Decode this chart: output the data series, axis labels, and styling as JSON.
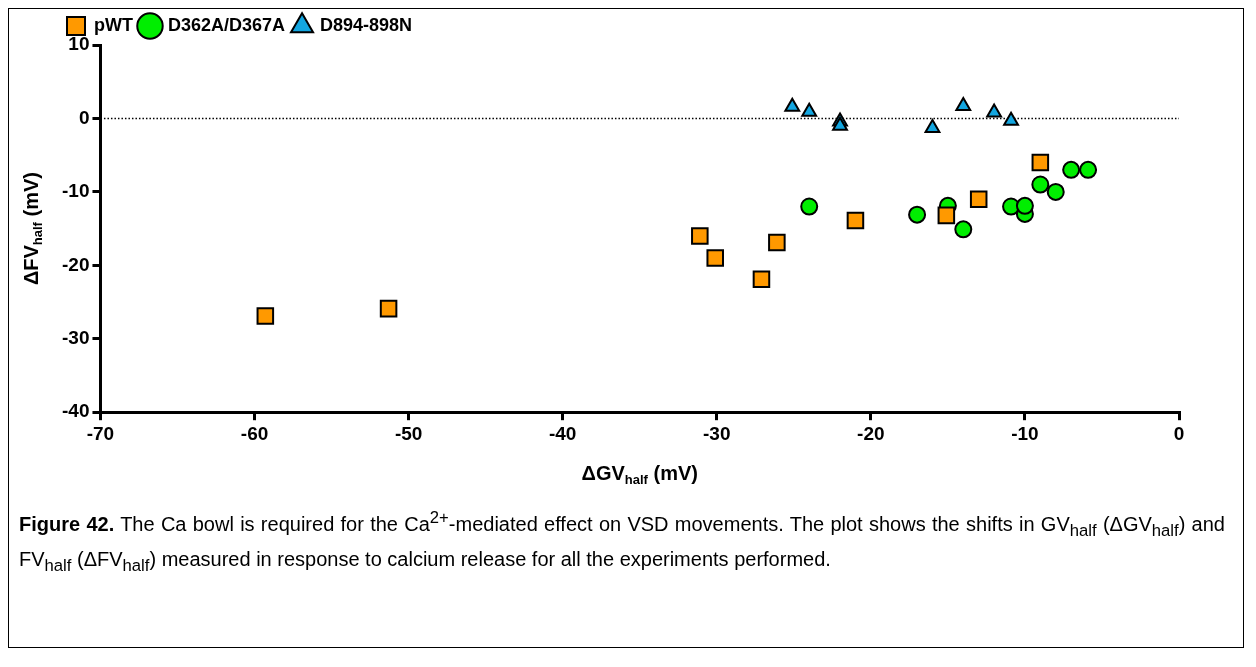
{
  "chart_data": {
    "type": "scatter",
    "xlabel": "ΔGV$_{half}$ (mV)",
    "ylabel": "ΔFV$_{half}$ (mV)",
    "xlim": [
      -70,
      0
    ],
    "xticks": [
      -70,
      -60,
      -50,
      -40,
      -30,
      -20,
      -10,
      0
    ],
    "ylim": [
      -40,
      10
    ],
    "yticks": [
      -40,
      -30,
      -20,
      -10,
      0,
      10
    ],
    "grid": false,
    "legend": "top left",
    "series": [
      {
        "name": "pWT",
        "color": "#ff9900",
        "marker": "square",
        "x": [
          -59.3,
          -51.3,
          -31.1,
          -30.1,
          -26.1,
          -27.1,
          -21,
          -15.1,
          -13,
          -9
        ],
        "values": [
          -26.9,
          -25.9,
          -16,
          -19,
          -16.9,
          -21.9,
          -13.9,
          -13.2,
          -11,
          -6
        ]
      },
      {
        "name": "D362A/D367A",
        "color": "#00ee00",
        "marker": "circle",
        "x": [
          -24,
          -17,
          -15,
          -14,
          -10.9,
          -10,
          -10,
          -9,
          -8,
          -7,
          -5.9
        ],
        "values": [
          -12,
          -13.1,
          -11.9,
          -15.1,
          -12,
          -13,
          -11.9,
          -9,
          -10,
          -7,
          -7
        ]
      },
      {
        "name": "D894-898N",
        "color": "#13a6e0",
        "marker": "triangle",
        "x": [
          -25.1,
          -24,
          -22,
          -22,
          -16,
          -14,
          -12,
          -10.9
        ],
        "values": [
          1.6,
          0.9,
          -0.4,
          -1,
          -1.3,
          1.7,
          0.8,
          -0.3
        ]
      }
    ],
    "ref_lines": [
      {
        "axis": "y",
        "value": 0,
        "line_style": "dotted",
        "color": "#000000"
      }
    ],
    "annotations": [
      "**Figure 42.** The Ca bowl is required for the Ca$^{2+}$-mediated effect on VSD movements. The plot shows the shifts in GV$_{half}$ (ΔGV$_{half}$) and FV$_{half}$ (ΔFV$_{half}$) measured in response to calcium release for all the experiments performed."
    ]
  }
}
